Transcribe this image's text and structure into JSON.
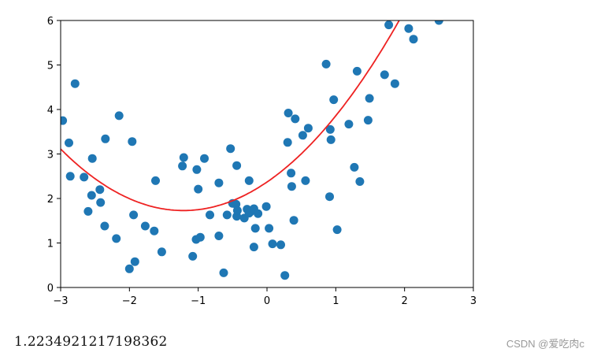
{
  "chart_data": {
    "type": "scatter",
    "title": "",
    "xlabel": "",
    "ylabel": "",
    "xlim": [
      -3,
      3
    ],
    "ylim": [
      0,
      6
    ],
    "xticks": [
      -3,
      -2,
      -1,
      0,
      1,
      2,
      3
    ],
    "yticks": [
      0,
      1,
      2,
      3,
      4,
      5,
      6
    ],
    "grid": false,
    "colors": {
      "points": "#1f77b4",
      "curve": "#ee2222"
    },
    "points": [
      [
        -2.97,
        3.75
      ],
      [
        -2.88,
        3.25
      ],
      [
        -2.86,
        2.5
      ],
      [
        -2.79,
        4.58
      ],
      [
        -2.66,
        2.48
      ],
      [
        -2.6,
        1.71
      ],
      [
        -2.55,
        2.07
      ],
      [
        -2.54,
        2.9
      ],
      [
        -2.43,
        2.2
      ],
      [
        -2.42,
        1.91
      ],
      [
        -2.36,
        1.38
      ],
      [
        -2.35,
        3.34
      ],
      [
        -2.19,
        1.1
      ],
      [
        -2.15,
        3.86
      ],
      [
        -2.0,
        0.42
      ],
      [
        -1.96,
        3.28
      ],
      [
        -1.94,
        1.63
      ],
      [
        -1.92,
        0.58
      ],
      [
        -1.77,
        1.38
      ],
      [
        -1.64,
        1.27
      ],
      [
        -1.62,
        2.4
      ],
      [
        -1.53,
        0.8
      ],
      [
        -1.23,
        2.73
      ],
      [
        -1.21,
        2.92
      ],
      [
        -1.08,
        0.7
      ],
      [
        -1.03,
        1.08
      ],
      [
        -1.02,
        2.65
      ],
      [
        -1.0,
        2.21
      ],
      [
        -0.97,
        1.13
      ],
      [
        -0.91,
        2.9
      ],
      [
        -0.83,
        1.63
      ],
      [
        -0.7,
        2.35
      ],
      [
        -0.7,
        1.16
      ],
      [
        -0.63,
        0.33
      ],
      [
        -0.58,
        1.63
      ],
      [
        -0.53,
        3.12
      ],
      [
        -0.5,
        1.89
      ],
      [
        -0.45,
        1.87
      ],
      [
        -0.44,
        1.6
      ],
      [
        -0.44,
        2.74
      ],
      [
        -0.43,
        1.73
      ],
      [
        -0.33,
        1.56
      ],
      [
        -0.29,
        1.76
      ],
      [
        -0.26,
        1.67
      ],
      [
        -0.26,
        2.4
      ],
      [
        -0.24,
        1.7
      ],
      [
        -0.19,
        1.77
      ],
      [
        -0.19,
        0.91
      ],
      [
        -0.17,
        1.33
      ],
      [
        -0.13,
        1.66
      ],
      [
        -0.01,
        1.82
      ],
      [
        0.03,
        1.33
      ],
      [
        0.08,
        0.98
      ],
      [
        0.2,
        0.96
      ],
      [
        0.26,
        0.27
      ],
      [
        0.3,
        3.26
      ],
      [
        0.31,
        3.92
      ],
      [
        0.35,
        2.57
      ],
      [
        0.36,
        2.27
      ],
      [
        0.39,
        1.51
      ],
      [
        0.41,
        3.79
      ],
      [
        0.52,
        3.42
      ],
      [
        0.56,
        2.4
      ],
      [
        0.6,
        3.58
      ],
      [
        0.86,
        5.02
      ],
      [
        0.91,
        2.04
      ],
      [
        0.92,
        3.55
      ],
      [
        0.93,
        3.32
      ],
      [
        0.97,
        4.22
      ],
      [
        1.02,
        1.3
      ],
      [
        1.19,
        3.67
      ],
      [
        1.27,
        2.7
      ],
      [
        1.31,
        4.86
      ],
      [
        1.35,
        2.38
      ],
      [
        1.47,
        3.76
      ],
      [
        1.49,
        4.25
      ],
      [
        1.71,
        4.78
      ],
      [
        1.77,
        5.9
      ],
      [
        1.86,
        4.58
      ],
      [
        2.06,
        5.82
      ],
      [
        2.13,
        5.58
      ],
      [
        2.5,
        6.0
      ]
    ],
    "fit_curve": {
      "a": 0.434,
      "b": 1.055,
      "c": 2.37
    }
  },
  "output": {
    "text": "1.2234921217198362"
  },
  "watermark": {
    "text": "CSDN @爱吃肉c"
  }
}
